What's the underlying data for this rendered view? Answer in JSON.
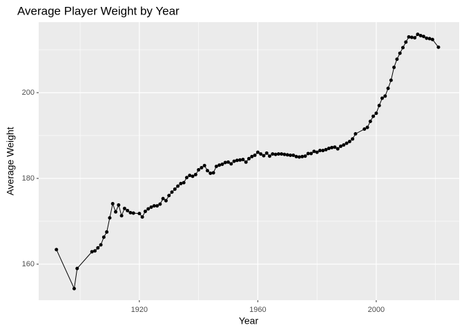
{
  "chart_data": {
    "type": "line",
    "title": "Average Player Weight by Year",
    "x_label": "Year",
    "y_label": "Average Weight",
    "x": [
      1892,
      1898,
      1899,
      1904,
      1905,
      1906,
      1907,
      1908,
      1909,
      1910,
      1911,
      1912,
      1913,
      1914,
      1915,
      1916,
      1917,
      1918,
      1920,
      1921,
      1922,
      1923,
      1924,
      1925,
      1926,
      1927,
      1928,
      1929,
      1930,
      1931,
      1932,
      1933,
      1934,
      1935,
      1936,
      1937,
      1938,
      1939,
      1940,
      1941,
      1942,
      1943,
      1944,
      1945,
      1946,
      1947,
      1948,
      1949,
      1950,
      1951,
      1952,
      1953,
      1954,
      1955,
      1956,
      1957,
      1958,
      1959,
      1960,
      1961,
      1962,
      1963,
      1964,
      1965,
      1966,
      1967,
      1968,
      1969,
      1970,
      1971,
      1972,
      1973,
      1974,
      1975,
      1976,
      1977,
      1978,
      1979,
      1980,
      1981,
      1982,
      1983,
      1984,
      1985,
      1986,
      1987,
      1988,
      1989,
      1990,
      1991,
      1992,
      1993,
      1996,
      1997,
      1998,
      1999,
      2000,
      2001,
      2002,
      2003,
      2004,
      2005,
      2006,
      2007,
      2008,
      2009,
      2010,
      2011,
      2012,
      2013,
      2014,
      2015,
      2016,
      2017,
      2018,
      2019,
      2021
    ],
    "series": [
      {
        "name": "Average Weight",
        "color": "#000000",
        "values": [
          163.4,
          154.3,
          159.0,
          162.9,
          163.1,
          163.8,
          164.5,
          166.3,
          167.5,
          170.8,
          174.1,
          172.2,
          173.8,
          171.3,
          173.0,
          172.5,
          172.0,
          171.9,
          171.8,
          171.0,
          172.3,
          172.9,
          173.3,
          173.6,
          173.6,
          174.0,
          175.3,
          174.8,
          176.0,
          176.8,
          177.5,
          178.2,
          178.8,
          179.0,
          180.2,
          180.7,
          180.5,
          180.9,
          182.0,
          182.5,
          183.0,
          181.8,
          181.2,
          181.3,
          182.8,
          183.1,
          183.3,
          183.7,
          183.8,
          183.4,
          184.0,
          184.2,
          184.3,
          184.4,
          183.8,
          184.6,
          185.1,
          185.4,
          186.1,
          185.7,
          185.3,
          185.9,
          185.2,
          185.7,
          185.6,
          185.7,
          185.7,
          185.6,
          185.5,
          185.4,
          185.4,
          185.1,
          185.0,
          185.1,
          185.2,
          185.8,
          185.8,
          186.3,
          186.1,
          186.5,
          186.5,
          186.7,
          187.0,
          187.2,
          187.3,
          186.9,
          187.5,
          187.8,
          188.2,
          188.6,
          189.2,
          190.4,
          191.5,
          191.9,
          193.3,
          194.5,
          195.2,
          197.0,
          198.7,
          199.2,
          201.0,
          202.9,
          205.9,
          207.8,
          209.2,
          210.5,
          211.8,
          213.0,
          212.9,
          212.8,
          213.6,
          213.3,
          213.1,
          212.7,
          212.6,
          212.4,
          210.6
        ]
      }
    ],
    "xlim": [
      1886,
      2028
    ],
    "xticks": [
      1920,
      1960,
      2000
    ],
    "x_minor_ticks": [
      1900,
      1940,
      1980,
      2020
    ],
    "ylim": [
      151.6,
      216.45
    ],
    "yticks": [
      160,
      180,
      200
    ],
    "y_minor_ticks": [
      170,
      190,
      210
    ],
    "grid": true
  }
}
